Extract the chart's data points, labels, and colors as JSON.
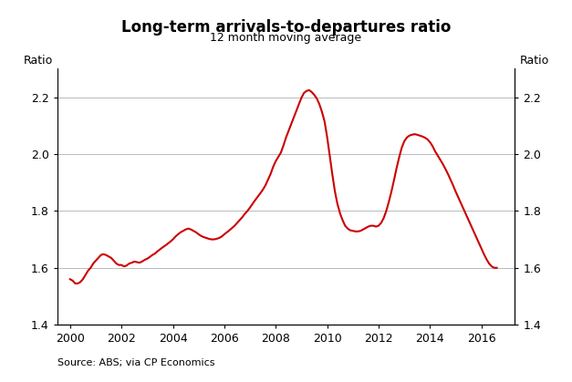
{
  "title": "Long-term arrivals-to-departures ratio",
  "subtitle": "12 month moving average",
  "ylabel_left": "Ratio",
  "ylabel_right": "Ratio",
  "source": "Source: ABS; via CP Economics",
  "line_color": "#cc0000",
  "line_width": 1.5,
  "ylim": [
    1.4,
    2.3
  ],
  "yticks": [
    1.4,
    1.6,
    1.8,
    2.0,
    2.2
  ],
  "xlim": [
    1999.5,
    2017.3
  ],
  "xticks": [
    2000,
    2002,
    2004,
    2006,
    2008,
    2010,
    2012,
    2014,
    2016
  ],
  "data": [
    [
      2000.0,
      1.56
    ],
    [
      2000.1,
      1.555
    ],
    [
      2000.2,
      1.545
    ],
    [
      2000.3,
      1.545
    ],
    [
      2000.4,
      1.55
    ],
    [
      2000.5,
      1.56
    ],
    [
      2000.6,
      1.575
    ],
    [
      2000.7,
      1.59
    ],
    [
      2000.8,
      1.6
    ],
    [
      2000.9,
      1.615
    ],
    [
      2001.0,
      1.625
    ],
    [
      2001.1,
      1.635
    ],
    [
      2001.2,
      1.645
    ],
    [
      2001.3,
      1.648
    ],
    [
      2001.4,
      1.645
    ],
    [
      2001.5,
      1.64
    ],
    [
      2001.6,
      1.635
    ],
    [
      2001.7,
      1.625
    ],
    [
      2001.8,
      1.615
    ],
    [
      2001.9,
      1.61
    ],
    [
      2002.0,
      1.61
    ],
    [
      2002.1,
      1.605
    ],
    [
      2002.2,
      1.608
    ],
    [
      2002.3,
      1.615
    ],
    [
      2002.4,
      1.618
    ],
    [
      2002.5,
      1.622
    ],
    [
      2002.6,
      1.62
    ],
    [
      2002.7,
      1.618
    ],
    [
      2002.8,
      1.622
    ],
    [
      2002.9,
      1.628
    ],
    [
      2003.0,
      1.632
    ],
    [
      2003.1,
      1.638
    ],
    [
      2003.2,
      1.645
    ],
    [
      2003.3,
      1.65
    ],
    [
      2003.4,
      1.658
    ],
    [
      2003.5,
      1.665
    ],
    [
      2003.6,
      1.672
    ],
    [
      2003.7,
      1.678
    ],
    [
      2003.8,
      1.685
    ],
    [
      2003.9,
      1.692
    ],
    [
      2004.0,
      1.7
    ],
    [
      2004.1,
      1.71
    ],
    [
      2004.2,
      1.718
    ],
    [
      2004.3,
      1.725
    ],
    [
      2004.4,
      1.73
    ],
    [
      2004.5,
      1.735
    ],
    [
      2004.6,
      1.738
    ],
    [
      2004.7,
      1.735
    ],
    [
      2004.8,
      1.73
    ],
    [
      2004.9,
      1.725
    ],
    [
      2005.0,
      1.718
    ],
    [
      2005.1,
      1.712
    ],
    [
      2005.2,
      1.708
    ],
    [
      2005.3,
      1.705
    ],
    [
      2005.4,
      1.702
    ],
    [
      2005.5,
      1.7
    ],
    [
      2005.6,
      1.7
    ],
    [
      2005.7,
      1.702
    ],
    [
      2005.8,
      1.705
    ],
    [
      2005.9,
      1.71
    ],
    [
      2006.0,
      1.718
    ],
    [
      2006.1,
      1.725
    ],
    [
      2006.2,
      1.732
    ],
    [
      2006.3,
      1.74
    ],
    [
      2006.4,
      1.748
    ],
    [
      2006.5,
      1.758
    ],
    [
      2006.6,
      1.768
    ],
    [
      2006.7,
      1.778
    ],
    [
      2006.8,
      1.79
    ],
    [
      2006.9,
      1.8
    ],
    [
      2007.0,
      1.812
    ],
    [
      2007.1,
      1.825
    ],
    [
      2007.2,
      1.838
    ],
    [
      2007.3,
      1.85
    ],
    [
      2007.4,
      1.862
    ],
    [
      2007.5,
      1.875
    ],
    [
      2007.6,
      1.89
    ],
    [
      2007.7,
      1.91
    ],
    [
      2007.8,
      1.93
    ],
    [
      2007.9,
      1.955
    ],
    [
      2008.0,
      1.975
    ],
    [
      2008.1,
      1.99
    ],
    [
      2008.2,
      2.005
    ],
    [
      2008.3,
      2.03
    ],
    [
      2008.4,
      2.058
    ],
    [
      2008.5,
      2.082
    ],
    [
      2008.6,
      2.105
    ],
    [
      2008.7,
      2.128
    ],
    [
      2008.8,
      2.152
    ],
    [
      2008.9,
      2.175
    ],
    [
      2009.0,
      2.198
    ],
    [
      2009.1,
      2.215
    ],
    [
      2009.2,
      2.222
    ],
    [
      2009.3,
      2.225
    ],
    [
      2009.4,
      2.218
    ],
    [
      2009.5,
      2.208
    ],
    [
      2009.6,
      2.195
    ],
    [
      2009.7,
      2.175
    ],
    [
      2009.8,
      2.148
    ],
    [
      2009.9,
      2.115
    ],
    [
      2010.0,
      2.06
    ],
    [
      2010.1,
      1.995
    ],
    [
      2010.2,
      1.93
    ],
    [
      2010.3,
      1.87
    ],
    [
      2010.4,
      1.825
    ],
    [
      2010.5,
      1.792
    ],
    [
      2010.6,
      1.768
    ],
    [
      2010.7,
      1.748
    ],
    [
      2010.8,
      1.738
    ],
    [
      2010.9,
      1.732
    ],
    [
      2011.0,
      1.73
    ],
    [
      2011.1,
      1.728
    ],
    [
      2011.2,
      1.728
    ],
    [
      2011.3,
      1.73
    ],
    [
      2011.4,
      1.735
    ],
    [
      2011.5,
      1.74
    ],
    [
      2011.6,
      1.745
    ],
    [
      2011.7,
      1.748
    ],
    [
      2011.8,
      1.748
    ],
    [
      2011.9,
      1.745
    ],
    [
      2012.0,
      1.748
    ],
    [
      2012.1,
      1.758
    ],
    [
      2012.2,
      1.775
    ],
    [
      2012.3,
      1.8
    ],
    [
      2012.4,
      1.832
    ],
    [
      2012.5,
      1.868
    ],
    [
      2012.6,
      1.908
    ],
    [
      2012.7,
      1.95
    ],
    [
      2012.8,
      1.988
    ],
    [
      2012.9,
      2.022
    ],
    [
      2013.0,
      2.045
    ],
    [
      2013.1,
      2.058
    ],
    [
      2013.2,
      2.065
    ],
    [
      2013.3,
      2.068
    ],
    [
      2013.4,
      2.07
    ],
    [
      2013.5,
      2.068
    ],
    [
      2013.6,
      2.065
    ],
    [
      2013.7,
      2.062
    ],
    [
      2013.8,
      2.058
    ],
    [
      2013.9,
      2.052
    ],
    [
      2014.0,
      2.042
    ],
    [
      2014.1,
      2.028
    ],
    [
      2014.2,
      2.01
    ],
    [
      2014.3,
      1.995
    ],
    [
      2014.4,
      1.98
    ],
    [
      2014.5,
      1.965
    ],
    [
      2014.6,
      1.948
    ],
    [
      2014.7,
      1.93
    ],
    [
      2014.8,
      1.91
    ],
    [
      2014.9,
      1.89
    ],
    [
      2015.0,
      1.868
    ],
    [
      2015.1,
      1.848
    ],
    [
      2015.2,
      1.828
    ],
    [
      2015.3,
      1.808
    ],
    [
      2015.4,
      1.788
    ],
    [
      2015.5,
      1.768
    ],
    [
      2015.6,
      1.748
    ],
    [
      2015.7,
      1.728
    ],
    [
      2015.8,
      1.708
    ],
    [
      2015.9,
      1.688
    ],
    [
      2016.0,
      1.668
    ],
    [
      2016.1,
      1.648
    ],
    [
      2016.2,
      1.63
    ],
    [
      2016.3,
      1.615
    ],
    [
      2016.4,
      1.605
    ],
    [
      2016.5,
      1.6
    ],
    [
      2016.6,
      1.6
    ]
  ]
}
